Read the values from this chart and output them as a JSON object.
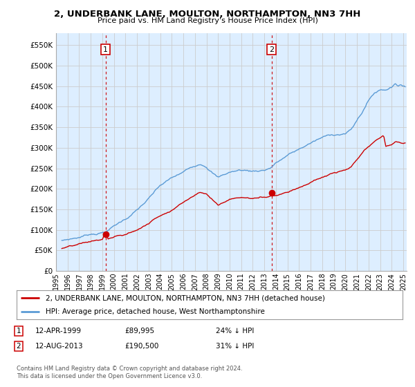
{
  "title": "2, UNDERBANK LANE, MOULTON, NORTHAMPTON, NN3 7HH",
  "subtitle": "Price paid vs. HM Land Registry's House Price Index (HPI)",
  "legend_line1": "2, UNDERBANK LANE, MOULTON, NORTHAMPTON, NN3 7HH (detached house)",
  "legend_line2": "HPI: Average price, detached house, West Northamptonshire",
  "annotation1_date": "12-APR-1999",
  "annotation1_price": "£89,995",
  "annotation1_hpi": "24% ↓ HPI",
  "annotation2_date": "12-AUG-2013",
  "annotation2_price": "£190,500",
  "annotation2_hpi": "31% ↓ HPI",
  "footer": "Contains HM Land Registry data © Crown copyright and database right 2024.\nThis data is licensed under the Open Government Licence v3.0.",
  "red_line_color": "#cc0000",
  "blue_line_color": "#5b9bd5",
  "bg_fill_color": "#ddeeff",
  "sale1_x": 1999.28,
  "sale1_y": 89995,
  "sale2_x": 2013.62,
  "sale2_y": 190500,
  "vline1_x": 1999.28,
  "vline2_x": 2013.62,
  "ylim": [
    0,
    580000
  ],
  "xlim_start": 1995.4,
  "xlim_end": 2025.3
}
